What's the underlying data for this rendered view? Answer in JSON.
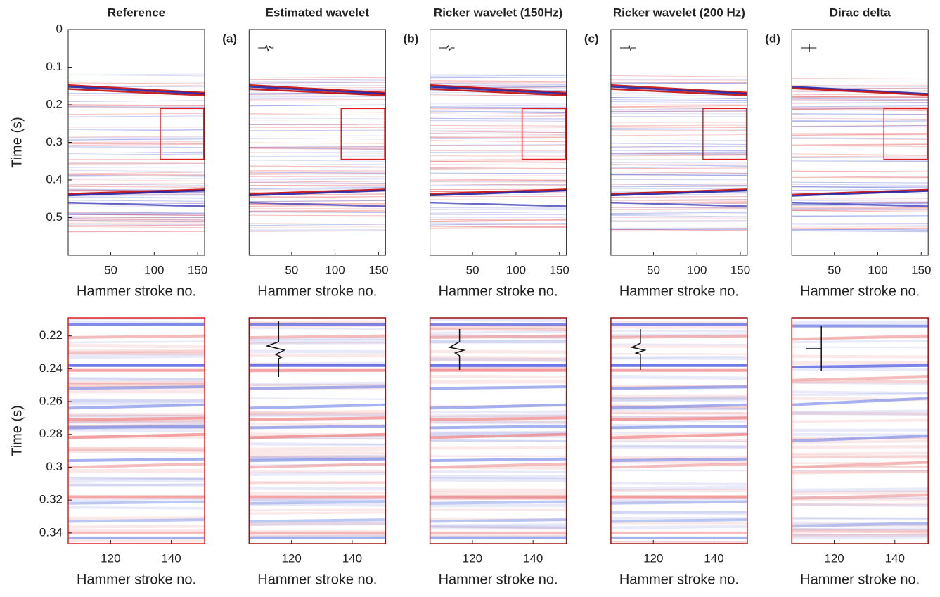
{
  "chart_data": [
    {
      "type": "seismic",
      "title": "Reference",
      "ylabel": "Time (s)",
      "xlabel": "Hammer stroke no.",
      "xlim": [
        1,
        158
      ],
      "ylim": [
        0,
        0.6
      ],
      "xticks": [
        50,
        100,
        150
      ],
      "yticks": [
        0,
        0.1,
        0.2,
        0.3,
        0.4,
        0.5
      ],
      "box": {
        "x": [
          107,
          157
        ],
        "y": [
          0.21,
          0.345
        ],
        "color": "#e02020"
      },
      "events": [
        {
          "t": [
            0.148,
            0.168
          ],
          "color": "#c00000"
        },
        {
          "t": [
            0.152,
            0.171
          ],
          "color": "#1a1aa0"
        },
        {
          "t": [
            0.158,
            0.175
          ],
          "color": "#c00000"
        },
        {
          "t": [
            0.437,
            0.425
          ],
          "color": "#c00000"
        },
        {
          "t": [
            0.441,
            0.428
          ],
          "color": "#1a1aa0"
        },
        {
          "t": [
            0.46,
            0.47
          ],
          "color": "#5050c0"
        }
      ]
    },
    {
      "type": "seismic",
      "title": "Estimated wavelet",
      "label": "(a)",
      "xlabel": "Hammer stroke no.",
      "xlim": [
        1,
        158
      ],
      "ylim": [
        0,
        0.6
      ],
      "xticks": [
        50,
        100,
        150
      ],
      "box": {
        "x": [
          107,
          157
        ],
        "y": [
          0.21,
          0.345
        ],
        "color": "#e02020"
      },
      "events": [
        {
          "t": [
            0.148,
            0.168
          ],
          "color": "#c00000"
        },
        {
          "t": [
            0.152,
            0.171
          ],
          "color": "#1a1aa0"
        },
        {
          "t": [
            0.158,
            0.175
          ],
          "color": "#c00000"
        },
        {
          "t": [
            0.437,
            0.425
          ],
          "color": "#c00000"
        },
        {
          "t": [
            0.441,
            0.428
          ],
          "color": "#1a1aa0"
        },
        {
          "t": [
            0.46,
            0.47
          ],
          "color": "#5050c0"
        }
      ]
    },
    {
      "type": "seismic",
      "title": "Ricker wavelet (150Hz)",
      "label": "(b)",
      "xlabel": "Hammer stroke no.",
      "xlim": [
        1,
        158
      ],
      "ylim": [
        0,
        0.6
      ],
      "xticks": [
        50,
        100,
        150
      ],
      "box": {
        "x": [
          107,
          157
        ],
        "y": [
          0.21,
          0.345
        ],
        "color": "#e02020"
      },
      "events": [
        {
          "t": [
            0.148,
            0.168
          ],
          "color": "#c00000"
        },
        {
          "t": [
            0.152,
            0.171
          ],
          "color": "#1a1aa0"
        },
        {
          "t": [
            0.158,
            0.175
          ],
          "color": "#c00000"
        },
        {
          "t": [
            0.437,
            0.425
          ],
          "color": "#c00000"
        },
        {
          "t": [
            0.441,
            0.428
          ],
          "color": "#1a1aa0"
        },
        {
          "t": [
            0.46,
            0.47
          ],
          "color": "#5050c0"
        }
      ]
    },
    {
      "type": "seismic",
      "title": "Ricker wavelet (200 Hz)",
      "label": "(c)",
      "xlabel": "Hammer stroke no.",
      "xlim": [
        1,
        158
      ],
      "ylim": [
        0,
        0.6
      ],
      "xticks": [
        50,
        100,
        150
      ],
      "box": {
        "x": [
          107,
          157
        ],
        "y": [
          0.21,
          0.345
        ],
        "color": "#e02020"
      },
      "events": [
        {
          "t": [
            0.148,
            0.168
          ],
          "color": "#c00000"
        },
        {
          "t": [
            0.152,
            0.171
          ],
          "color": "#1a1aa0"
        },
        {
          "t": [
            0.158,
            0.175
          ],
          "color": "#c00000"
        },
        {
          "t": [
            0.437,
            0.425
          ],
          "color": "#c00000"
        },
        {
          "t": [
            0.441,
            0.428
          ],
          "color": "#1a1aa0"
        },
        {
          "t": [
            0.46,
            0.47
          ],
          "color": "#5050c0"
        }
      ]
    },
    {
      "type": "seismic",
      "title": "Dirac delta",
      "label": "(d)",
      "xlabel": "Hammer stroke no.",
      "xlim": [
        1,
        158
      ],
      "ylim": [
        0,
        0.6
      ],
      "xticks": [
        50,
        100,
        150
      ],
      "box": {
        "x": [
          107,
          157
        ],
        "y": [
          0.21,
          0.345
        ],
        "color": "#e02020"
      },
      "events": [
        {
          "t": [
            0.152,
            0.171
          ],
          "color": "#1a1aa0"
        },
        {
          "t": [
            0.156,
            0.174
          ],
          "color": "#c00000"
        },
        {
          "t": [
            0.439,
            0.426
          ],
          "color": "#c00000"
        },
        {
          "t": [
            0.442,
            0.429
          ],
          "color": "#1a1aa0"
        },
        {
          "t": [
            0.46,
            0.47
          ],
          "color": "#5050c0"
        }
      ]
    },
    {
      "type": "seismic",
      "ylabel": "Time (s)",
      "xlabel": "Hammer stroke no.",
      "xlim": [
        106,
        151
      ],
      "ylim": [
        0.209,
        0.3465
      ],
      "xticks": [
        120,
        140
      ],
      "yticks": [
        0.22,
        0.24,
        0.26,
        0.28,
        0.3,
        0.32,
        0.34
      ],
      "frame": "#e02020",
      "events": [
        {
          "t": [
            0.213,
            0.213
          ],
          "color": "#4a5ae0"
        },
        {
          "t": [
            0.221,
            0.22
          ],
          "color": "#f0a0a0"
        },
        {
          "t": [
            0.238,
            0.238
          ],
          "color": "#3040e0"
        },
        {
          "t": [
            0.241,
            0.241
          ],
          "color": "#f08080"
        },
        {
          "t": [
            0.252,
            0.251
          ],
          "color": "#8090e8"
        },
        {
          "t": [
            0.264,
            0.262
          ],
          "color": "#8090e8"
        },
        {
          "t": [
            0.271,
            0.27
          ],
          "color": "#f08080"
        },
        {
          "t": [
            0.276,
            0.275
          ],
          "color": "#8090e8"
        },
        {
          "t": [
            0.282,
            0.28
          ],
          "color": "#f08080"
        },
        {
          "t": [
            0.296,
            0.295
          ],
          "color": "#8090e8"
        },
        {
          "t": [
            0.3,
            0.298
          ],
          "color": "#f0a0a0"
        },
        {
          "t": [
            0.318,
            0.318
          ],
          "color": "#f08080"
        },
        {
          "t": [
            0.322,
            0.321
          ],
          "color": "#a0b0f0"
        },
        {
          "t": [
            0.333,
            0.332
          ],
          "color": "#a0b0f0"
        },
        {
          "t": [
            0.34,
            0.34
          ],
          "color": "#f0a0a0"
        },
        {
          "t": [
            0.343,
            0.343
          ],
          "color": "#8090e8"
        }
      ]
    },
    {
      "type": "seismic",
      "xlabel": "Hammer stroke no.",
      "xlim": [
        106,
        151
      ],
      "ylim": [
        0.209,
        0.3465
      ],
      "xticks": [
        120,
        140
      ],
      "frame": "#a01010",
      "events": [
        {
          "t": [
            0.213,
            0.213
          ],
          "color": "#4a5ae0"
        },
        {
          "t": [
            0.221,
            0.22
          ],
          "color": "#f0a0a0"
        },
        {
          "t": [
            0.238,
            0.238
          ],
          "color": "#3040e0"
        },
        {
          "t": [
            0.241,
            0.241
          ],
          "color": "#f08080"
        },
        {
          "t": [
            0.252,
            0.251
          ],
          "color": "#8090e8"
        },
        {
          "t": [
            0.264,
            0.262
          ],
          "color": "#8090e8"
        },
        {
          "t": [
            0.271,
            0.27
          ],
          "color": "#f08080"
        },
        {
          "t": [
            0.276,
            0.275
          ],
          "color": "#8090e8"
        },
        {
          "t": [
            0.282,
            0.28
          ],
          "color": "#f08080"
        },
        {
          "t": [
            0.296,
            0.295
          ],
          "color": "#8090e8"
        },
        {
          "t": [
            0.3,
            0.298
          ],
          "color": "#f0a0a0"
        },
        {
          "t": [
            0.318,
            0.318
          ],
          "color": "#f08080"
        },
        {
          "t": [
            0.322,
            0.321
          ],
          "color": "#a0b0f0"
        },
        {
          "t": [
            0.333,
            0.332
          ],
          "color": "#a0b0f0"
        },
        {
          "t": [
            0.34,
            0.34
          ],
          "color": "#f0a0a0"
        },
        {
          "t": [
            0.343,
            0.343
          ],
          "color": "#8090e8"
        }
      ]
    },
    {
      "type": "seismic",
      "xlabel": "Hammer stroke no.",
      "xlim": [
        106,
        151
      ],
      "ylim": [
        0.209,
        0.3465
      ],
      "xticks": [
        120,
        140
      ],
      "frame": "#a01010",
      "events": [
        {
          "t": [
            0.213,
            0.213
          ],
          "color": "#4a5ae0"
        },
        {
          "t": [
            0.221,
            0.22
          ],
          "color": "#f0a0a0"
        },
        {
          "t": [
            0.238,
            0.238
          ],
          "color": "#3040e0"
        },
        {
          "t": [
            0.241,
            0.241
          ],
          "color": "#f08080"
        },
        {
          "t": [
            0.252,
            0.251
          ],
          "color": "#8090e8"
        },
        {
          "t": [
            0.264,
            0.262
          ],
          "color": "#8090e8"
        },
        {
          "t": [
            0.271,
            0.27
          ],
          "color": "#f08080"
        },
        {
          "t": [
            0.276,
            0.275
          ],
          "color": "#8090e8"
        },
        {
          "t": [
            0.282,
            0.28
          ],
          "color": "#f08080"
        },
        {
          "t": [
            0.296,
            0.295
          ],
          "color": "#8090e8"
        },
        {
          "t": [
            0.3,
            0.298
          ],
          "color": "#f0a0a0"
        },
        {
          "t": [
            0.318,
            0.318
          ],
          "color": "#f08080"
        },
        {
          "t": [
            0.322,
            0.321
          ],
          "color": "#a0b0f0"
        },
        {
          "t": [
            0.333,
            0.332
          ],
          "color": "#a0b0f0"
        },
        {
          "t": [
            0.34,
            0.34
          ],
          "color": "#f0a0a0"
        },
        {
          "t": [
            0.343,
            0.343
          ],
          "color": "#8090e8"
        }
      ]
    },
    {
      "type": "seismic",
      "xlabel": "Hammer stroke no.",
      "xlim": [
        106,
        151
      ],
      "ylim": [
        0.209,
        0.3465
      ],
      "xticks": [
        120,
        140
      ],
      "frame": "#a01010",
      "events": [
        {
          "t": [
            0.213,
            0.213
          ],
          "color": "#4a5ae0"
        },
        {
          "t": [
            0.221,
            0.22
          ],
          "color": "#f0a0a0"
        },
        {
          "t": [
            0.238,
            0.238
          ],
          "color": "#3040e0"
        },
        {
          "t": [
            0.241,
            0.241
          ],
          "color": "#f08080"
        },
        {
          "t": [
            0.252,
            0.251
          ],
          "color": "#8090e8"
        },
        {
          "t": [
            0.264,
            0.262
          ],
          "color": "#8090e8"
        },
        {
          "t": [
            0.271,
            0.27
          ],
          "color": "#f08080"
        },
        {
          "t": [
            0.276,
            0.275
          ],
          "color": "#8090e8"
        },
        {
          "t": [
            0.282,
            0.28
          ],
          "color": "#f08080"
        },
        {
          "t": [
            0.296,
            0.295
          ],
          "color": "#8090e8"
        },
        {
          "t": [
            0.3,
            0.298
          ],
          "color": "#f0a0a0"
        },
        {
          "t": [
            0.318,
            0.318
          ],
          "color": "#f08080"
        },
        {
          "t": [
            0.322,
            0.321
          ],
          "color": "#a0b0f0"
        },
        {
          "t": [
            0.333,
            0.332
          ],
          "color": "#a0b0f0"
        },
        {
          "t": [
            0.34,
            0.34
          ],
          "color": "#f0a0a0"
        },
        {
          "t": [
            0.343,
            0.343
          ],
          "color": "#8090e8"
        }
      ]
    },
    {
      "type": "seismic",
      "xlabel": "Hammer stroke no.",
      "xlim": [
        106,
        151
      ],
      "ylim": [
        0.209,
        0.3465
      ],
      "xticks": [
        120,
        140
      ],
      "frame": "#a01010",
      "events": [
        {
          "t": [
            0.214,
            0.214
          ],
          "color": "#6070e0"
        },
        {
          "t": [
            0.222,
            0.22
          ],
          "color": "#f0a0a0"
        },
        {
          "t": [
            0.239,
            0.238
          ],
          "color": "#4050e0"
        },
        {
          "t": [
            0.247,
            0.245
          ],
          "color": "#f0a0a0"
        },
        {
          "t": [
            0.262,
            0.258
          ],
          "color": "#8090e8"
        },
        {
          "t": [
            0.284,
            0.281
          ],
          "color": "#8090e8"
        },
        {
          "t": [
            0.3,
            0.297
          ],
          "color": "#f0a0a0"
        },
        {
          "t": [
            0.319,
            0.317
          ],
          "color": "#f0a0a0"
        },
        {
          "t": [
            0.336,
            0.334
          ],
          "color": "#a0b0f0"
        }
      ]
    }
  ]
}
